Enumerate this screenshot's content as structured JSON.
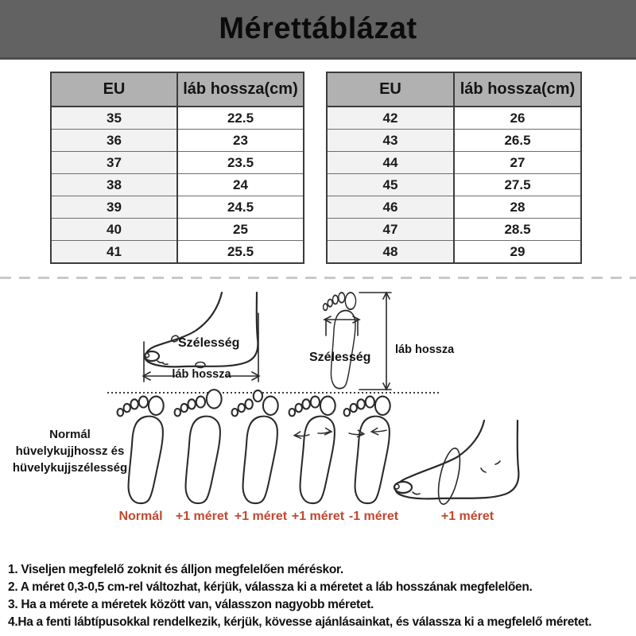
{
  "title": "Mérettáblázat",
  "size_tables": {
    "headers": [
      "EU",
      "láb hossza(cm)"
    ],
    "left_rows": [
      [
        "35",
        "22.5"
      ],
      [
        "36",
        "23"
      ],
      [
        "37",
        "23.5"
      ],
      [
        "38",
        "24"
      ],
      [
        "39",
        "24.5"
      ],
      [
        "40",
        "25"
      ],
      [
        "41",
        "25.5"
      ]
    ],
    "right_rows": [
      [
        "42",
        "26"
      ],
      [
        "43",
        "26.5"
      ],
      [
        "44",
        "27"
      ],
      [
        "45",
        "27.5"
      ],
      [
        "46",
        "28"
      ],
      [
        "47",
        "28.5"
      ],
      [
        "48",
        "29"
      ]
    ]
  },
  "measure_diagrams": {
    "side_view": {
      "width_label": "Szélesség",
      "length_label": "láb hossza"
    },
    "top_view": {
      "width_label": "Szélesség",
      "length_label": "láb hossza"
    }
  },
  "foot_types": {
    "caption": "Normál hüvelykujjhossz és hüvelykujjszélesség",
    "items": [
      {
        "label": "Normál"
      },
      {
        "label": "+1 méret"
      },
      {
        "label": "+1 méret"
      },
      {
        "label": "+1 méret"
      },
      {
        "label": "-1 méret"
      },
      {
        "label": "+1 méret"
      }
    ]
  },
  "notes": [
    "1. Viseljen megfelelő zoknit és álljon megfelelően méréskor.",
    "2. A méret 0,3-0,5 cm-rel változhat, kérjük, válassza ki a méretet a láb hosszának megfelelően.",
    "3. Ha a mérete a méretek között van, válasszon nagyobb méretet.",
    "4.Ha a fenti lábtípusokkal rendelkezik, kérjük, kövesse ajánlásainkat, és válassza ki a megfelelő méretet."
  ],
  "colors": {
    "banner_bg": "#626262",
    "table_header_bg": "#b1b1b1",
    "accent_red": "#c2482f",
    "line_dark": "#2a2a2a"
  }
}
